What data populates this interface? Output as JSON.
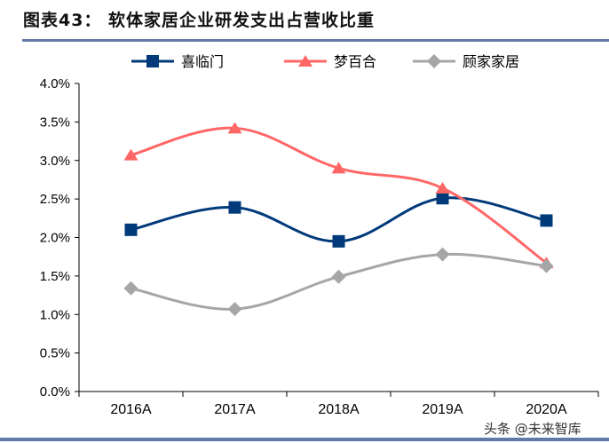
{
  "title": "图表43：  软体家居企业研发支出占营收比重",
  "watermark": "头条 @未来智库",
  "chart_data": {
    "type": "line",
    "title": "",
    "categories": [
      "2016A",
      "2017A",
      "2018A",
      "2019A",
      "2020A"
    ],
    "ylim": [
      0,
      4.0
    ],
    "yticks": [
      "0.0%",
      "0.5%",
      "1.0%",
      "1.5%",
      "2.0%",
      "2.5%",
      "3.0%",
      "3.5%",
      "4.0%"
    ],
    "grid": false,
    "legend": "top",
    "series": [
      {
        "name": "喜临门",
        "values": [
          2.1,
          2.39,
          1.95,
          2.51,
          2.22
        ],
        "color": "#003a7a",
        "marker": "square"
      },
      {
        "name": "梦百合",
        "values": [
          3.07,
          3.42,
          2.9,
          2.64,
          1.67
        ],
        "color": "#ff6666",
        "marker": "triangle"
      },
      {
        "name": "顾家家居",
        "values": [
          1.34,
          1.07,
          1.49,
          1.78,
          1.63
        ],
        "color": "#a6a6a6",
        "marker": "diamond"
      }
    ]
  }
}
